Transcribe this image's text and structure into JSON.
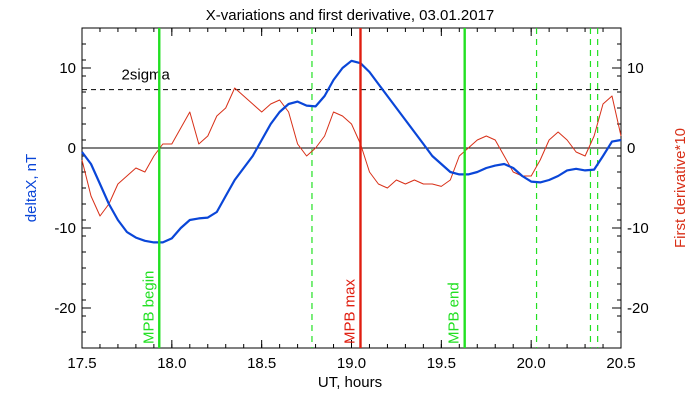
{
  "chart_data": {
    "type": "line",
    "title": "X-variations and first derivative, 03.01.2017",
    "xlabel": "UT, hours",
    "ylabel_left": "deltaX, nT",
    "ylabel_right": "First derivative*10",
    "xlim": [
      17.5,
      20.5
    ],
    "ylim": [
      -25,
      15
    ],
    "x_ticks": [
      "17.5",
      "18.0",
      "18.5",
      "19.0",
      "19.5",
      "20.0",
      "20.5"
    ],
    "y_ticks_left": [
      "-20",
      "-10",
      "0",
      "10"
    ],
    "y_ticks_right": [
      "-20",
      "-10",
      "0",
      "10"
    ],
    "colors": {
      "deltaX": "#0a46d8",
      "derivative": "#d83018",
      "mpb": "#22e022",
      "max": "#e01e10",
      "reference": "#000000"
    },
    "threshold": {
      "label": "2sigma",
      "value": 7.3
    },
    "zero_line": 0,
    "vertical_markers": [
      {
        "label": "MPB begin",
        "x": 17.93,
        "style": "solid",
        "color": "green"
      },
      {
        "label": "MPB max",
        "x": 19.05,
        "style": "solid",
        "color": "red"
      },
      {
        "label": "MPB end",
        "x": 19.63,
        "style": "solid",
        "color": "green"
      }
    ],
    "dashed_markers": [
      18.78,
      20.03,
      20.33,
      20.37
    ],
    "series": [
      {
        "axis": "left",
        "color": "blue",
        "x": [
          17.5,
          17.55,
          17.6,
          17.65,
          17.7,
          17.75,
          17.8,
          17.85,
          17.9,
          17.95,
          18.0,
          18.05,
          18.1,
          18.15,
          18.2,
          18.25,
          18.3,
          18.35,
          18.4,
          18.45,
          18.5,
          18.55,
          18.6,
          18.65,
          18.7,
          18.75,
          18.8,
          18.85,
          18.9,
          18.95,
          19.0,
          19.05,
          19.1,
          19.15,
          19.2,
          19.25,
          19.3,
          19.35,
          19.4,
          19.45,
          19.5,
          19.55,
          19.6,
          19.65,
          19.7,
          19.75,
          19.8,
          19.85,
          19.9,
          19.95,
          20.0,
          20.05,
          20.1,
          20.15,
          20.2,
          20.25,
          20.3,
          20.35,
          20.4,
          20.45,
          20.5
        ],
        "values": [
          -0.5,
          -2.0,
          -4.5,
          -7.0,
          -9.0,
          -10.5,
          -11.2,
          -11.6,
          -11.8,
          -11.8,
          -11.3,
          -10.0,
          -9.0,
          -8.8,
          -8.7,
          -8.0,
          -6.0,
          -4.0,
          -2.5,
          -1.0,
          1.0,
          3.0,
          4.5,
          5.5,
          5.8,
          5.3,
          5.2,
          6.5,
          8.5,
          10.0,
          10.9,
          10.6,
          9.5,
          8.0,
          6.5,
          5.0,
          3.5,
          2.0,
          0.5,
          -1.0,
          -2.0,
          -3.0,
          -3.3,
          -3.3,
          -3.0,
          -2.5,
          -2.2,
          -2.0,
          -2.5,
          -3.5,
          -4.2,
          -4.3,
          -4.0,
          -3.5,
          -2.8,
          -2.6,
          -2.8,
          -2.7,
          -1.0,
          0.8,
          1.0
        ]
      },
      {
        "axis": "right",
        "color": "red",
        "x": [
          17.5,
          17.55,
          17.6,
          17.65,
          17.7,
          17.75,
          17.8,
          17.85,
          17.9,
          17.95,
          18.0,
          18.05,
          18.1,
          18.15,
          18.2,
          18.25,
          18.3,
          18.35,
          18.4,
          18.45,
          18.5,
          18.55,
          18.6,
          18.65,
          18.7,
          18.75,
          18.8,
          18.85,
          18.9,
          18.95,
          19.0,
          19.05,
          19.1,
          19.15,
          19.2,
          19.25,
          19.3,
          19.35,
          19.4,
          19.45,
          19.5,
          19.55,
          19.6,
          19.65,
          19.7,
          19.75,
          19.8,
          19.85,
          19.9,
          19.95,
          20.0,
          20.05,
          20.1,
          20.15,
          20.2,
          20.25,
          20.3,
          20.35,
          20.4,
          20.45,
          20.5
        ],
        "values": [
          -1.5,
          -6.0,
          -8.5,
          -7.0,
          -4.5,
          -3.5,
          -2.5,
          -3.0,
          -1.0,
          0.5,
          0.5,
          2.5,
          4.5,
          0.5,
          1.5,
          4.0,
          5.0,
          7.5,
          6.5,
          5.5,
          4.5,
          5.5,
          6.0,
          4.5,
          0.5,
          -1.0,
          0.0,
          1.5,
          4.5,
          4.0,
          3.0,
          0.5,
          -3.0,
          -4.5,
          -5.0,
          -4.0,
          -4.5,
          -4.0,
          -4.5,
          -4.5,
          -4.8,
          -4.0,
          -1.0,
          0.0,
          1.0,
          1.5,
          1.0,
          -1.0,
          -3.0,
          -3.5,
          -3.5,
          -1.5,
          1.0,
          2.0,
          1.0,
          -0.5,
          -1.0,
          1.5,
          5.5,
          6.5,
          1.5
        ]
      }
    ]
  }
}
